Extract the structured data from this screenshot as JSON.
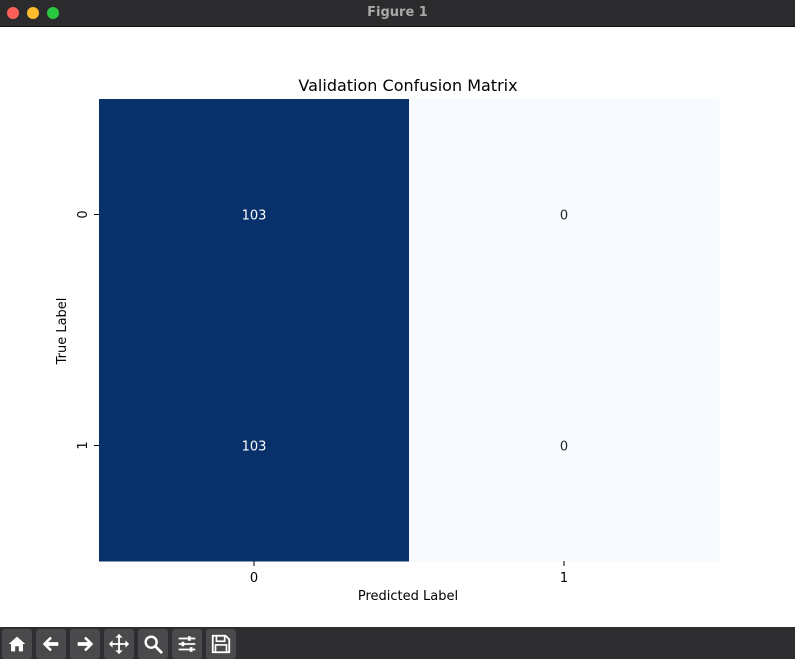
{
  "window": {
    "title": "Figure 1"
  },
  "colors": {
    "high": "#08306b",
    "low": "#f7fbff",
    "text_on_dark": "#ffffff",
    "text_on_light": "#262626"
  },
  "chart_data": {
    "type": "heatmap",
    "title": "Validation Confusion Matrix",
    "xlabel": "Predicted Label",
    "ylabel": "True Label",
    "x_categories": [
      "0",
      "1"
    ],
    "y_categories": [
      "0",
      "1"
    ],
    "values": [
      [
        103,
        0
      ],
      [
        103,
        0
      ]
    ],
    "colormap": "Blues",
    "colorbar": false,
    "annotations": true
  },
  "toolbar": {
    "tools": [
      {
        "name": "home-icon"
      },
      {
        "name": "back-arrow-icon"
      },
      {
        "name": "forward-arrow-icon"
      },
      {
        "name": "pan-icon"
      },
      {
        "name": "zoom-icon"
      },
      {
        "name": "configure-subplots-icon"
      },
      {
        "name": "save-icon"
      }
    ]
  }
}
